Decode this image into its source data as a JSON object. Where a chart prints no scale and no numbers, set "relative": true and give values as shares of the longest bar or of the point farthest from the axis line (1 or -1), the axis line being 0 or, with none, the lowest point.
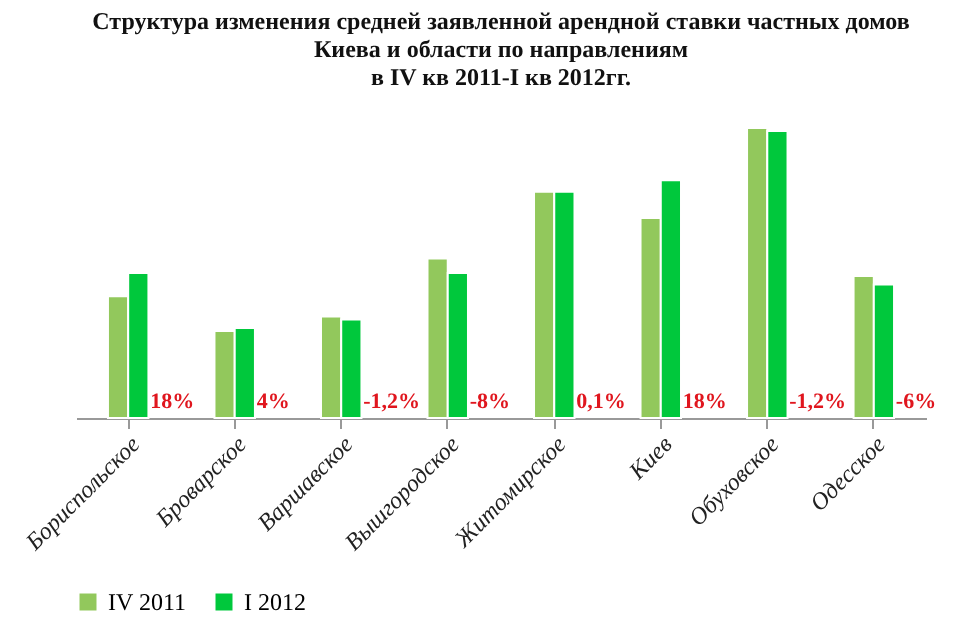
{
  "chart_data": {
    "type": "bar",
    "title": "Структура изменения средней заявленной арендной ставки частных домов\nКиева и области по направлениям\nв IV кв 2011-I кв 2012гг.",
    "categories": [
      "Бориспольское",
      "Броварское",
      "Варшавское",
      "Вышгородское",
      "Житомирское",
      "Киев",
      "Обуховское",
      "Одесское"
    ],
    "series": [
      {
        "name": "IV 2011",
        "color": "#92c85c",
        "values": [
          0.42,
          0.3,
          0.35,
          0.55,
          0.78,
          0.69,
          1,
          0.49
        ]
      },
      {
        "name": "I 2012",
        "color": "#00c83c",
        "values": [
          0.5,
          0.31,
          0.34,
          0.5,
          0.78,
          0.82,
          0.99,
          0.46
        ]
      }
    ],
    "relative": true,
    "legend": "bottom",
    "grid": false,
    "annotations": [
      {
        "text": "18%",
        "x": "Бориспольское"
      },
      {
        "text": "4%",
        "x": "Броварское"
      },
      {
        "text": "-1,2%",
        "x": "Варшавское"
      },
      {
        "text": "-8%",
        "x": "Вышгородское"
      },
      {
        "text": "0,1%",
        "x": "Житомирское"
      },
      {
        "text": "18%",
        "x": "Киев"
      },
      {
        "text": "-1,2%",
        "x": "Обуховское"
      },
      {
        "text": "-6%",
        "x": "Одесское"
      }
    ]
  }
}
